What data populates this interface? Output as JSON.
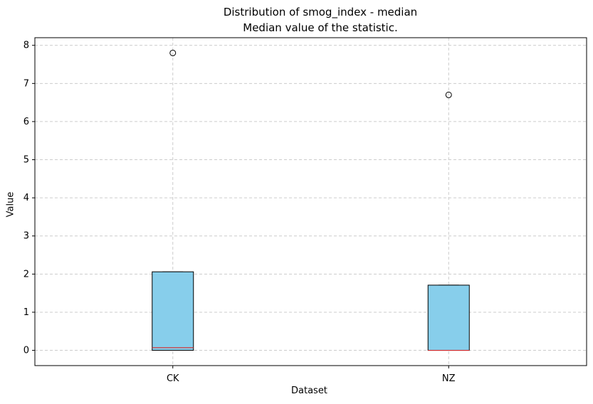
{
  "chart_data": {
    "type": "box",
    "title": "Distribution of smog_index - median",
    "subtitle": "Median value of the statistic.",
    "xlabel": "Dataset",
    "ylabel": "Value",
    "categories": [
      "CK",
      "NZ"
    ],
    "boxes": [
      {
        "category": "CK",
        "min": 0.0,
        "q1": 0.0,
        "median": 0.07,
        "q3": 2.06,
        "max": 2.06,
        "outliers": [
          7.8
        ]
      },
      {
        "category": "NZ",
        "min": 0.0,
        "q1": 0.0,
        "median": 0.0,
        "q3": 1.71,
        "max": 1.71,
        "outliers": [
          6.7
        ]
      }
    ],
    "ylim": [
      -0.4,
      8.2
    ],
    "yticks": [
      0,
      1,
      2,
      3,
      4,
      5,
      6,
      7,
      8
    ],
    "grid": true,
    "colors": {
      "box_fill": "#87ceeb",
      "box_edge": "#000000",
      "median_line": "#d62728",
      "grid": "#cccccc"
    }
  }
}
